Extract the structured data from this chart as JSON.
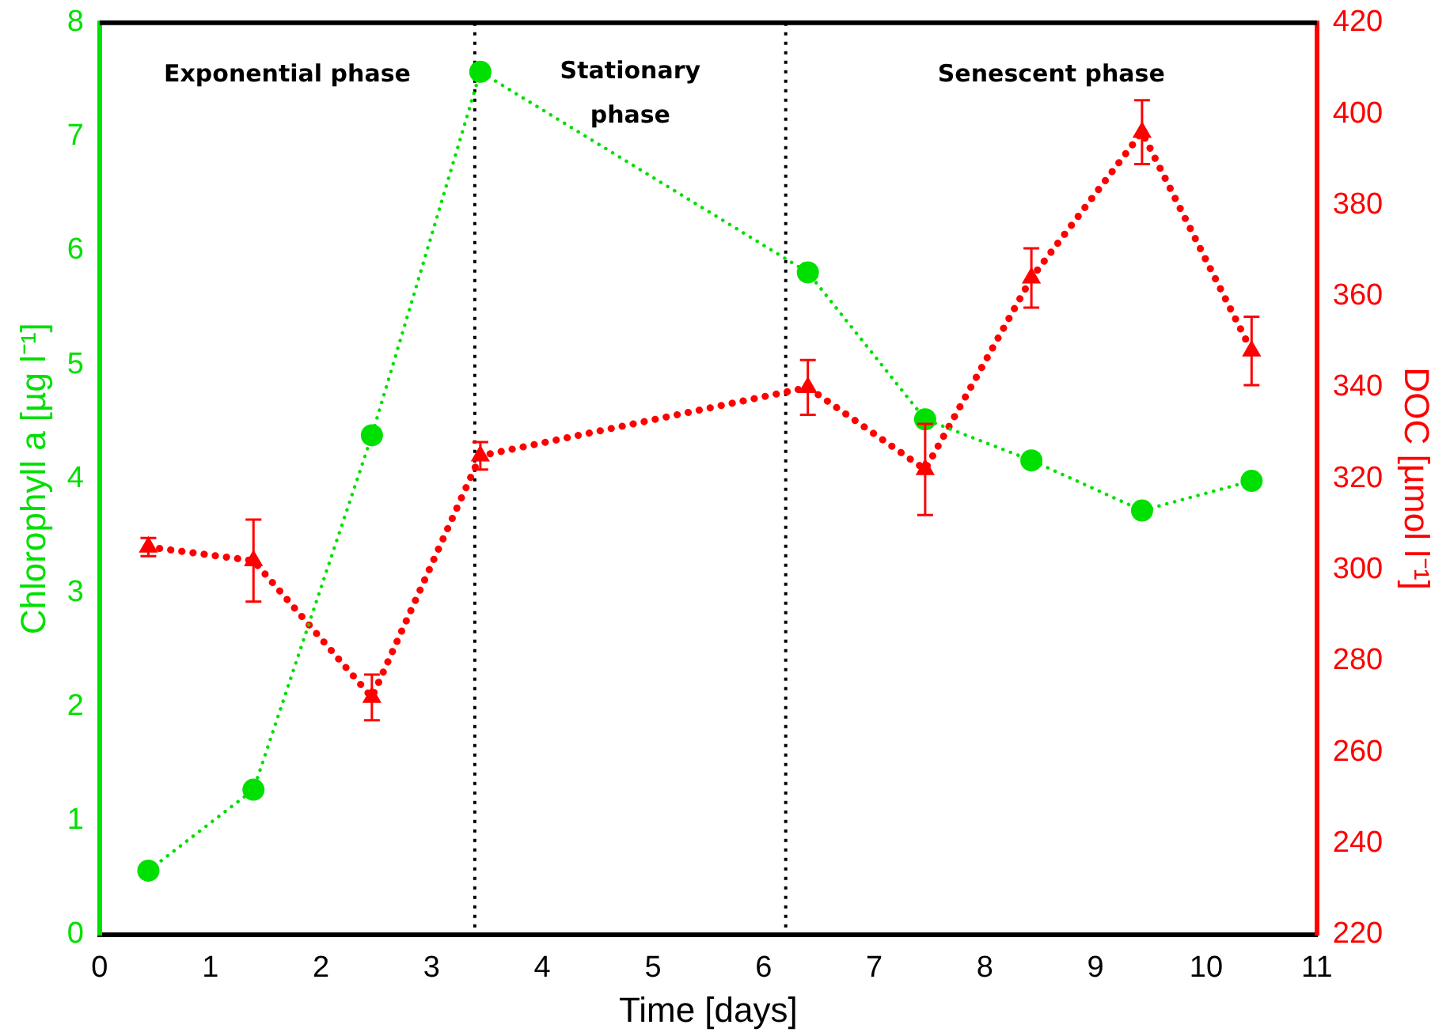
{
  "chart_data": {
    "type": "line",
    "xlabel": "Time [days]",
    "ylabel": "Chlorophyll a [µg l⁻¹]",
    "y2label": "DOC [µmol l⁻¹]",
    "x": [
      0.44,
      1.39,
      2.46,
      3.44,
      6.4,
      7.46,
      8.42,
      9.42,
      10.41
    ],
    "series": [
      {
        "color": "#00e000",
        "marker": "circle",
        "line_style": "dotted",
        "values": [
          0.56,
          1.27,
          4.38,
          7.57,
          5.81,
          4.52,
          4.16,
          3.72,
          3.98
        ]
      },
      {
        "color": "#ff0000",
        "marker": "triangle",
        "line_style": "dotted",
        "axis": "y2",
        "values": [
          305,
          302,
          272,
          325,
          340,
          322,
          364,
          396,
          348
        ],
        "errors": [
          2,
          9,
          5,
          3,
          6,
          10,
          6.5,
          7,
          7.5
        ]
      }
    ],
    "xlim": [
      0,
      11
    ],
    "xticks": [
      0,
      1,
      2,
      3,
      4,
      5,
      6,
      7,
      8,
      9,
      10,
      11
    ],
    "ylim": [
      0,
      8
    ],
    "yticks": [
      0,
      1,
      2,
      3,
      4,
      5,
      6,
      7,
      8
    ],
    "y2lim": [
      220,
      420
    ],
    "y2ticks": [
      220,
      240,
      260,
      280,
      300,
      320,
      340,
      360,
      380,
      400,
      420
    ],
    "ref_lines": [
      {
        "axis": "x",
        "value": 3.39,
        "color": "#000000",
        "line_style": "dotted"
      },
      {
        "axis": "x",
        "value": 6.2,
        "color": "#000000",
        "line_style": "dotted"
      }
    ],
    "annotations": [
      "Exponential phase",
      "Stationary phase",
      "Senescent phase"
    ],
    "grid": false,
    "legend": false
  }
}
